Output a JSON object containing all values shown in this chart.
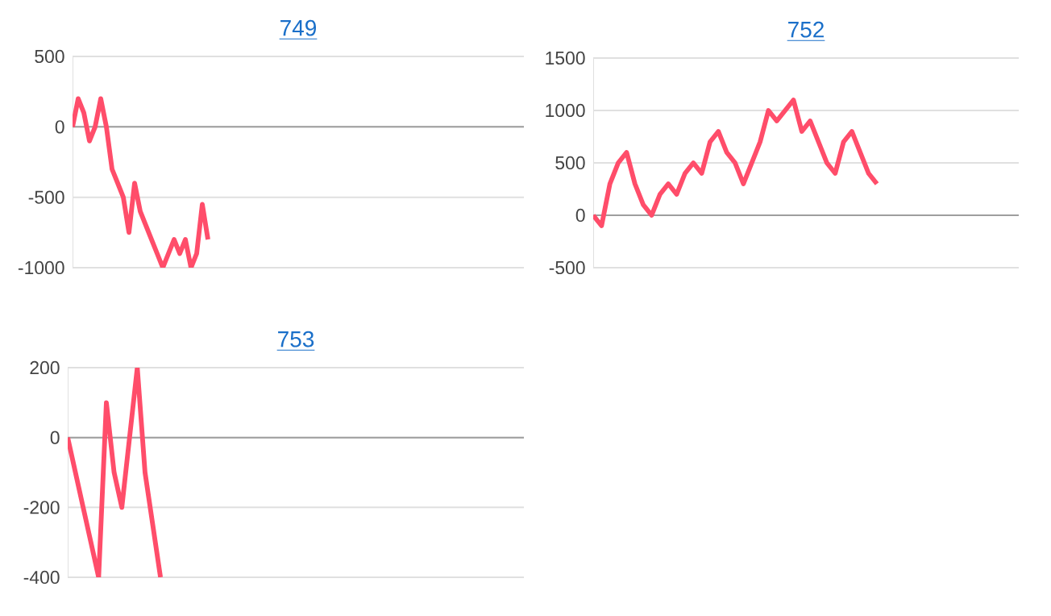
{
  "chart_data": [
    {
      "type": "line",
      "title": "749",
      "tick_labels": "y",
      "grid": "y",
      "ylim": [
        -1000,
        500
      ],
      "yticks": [
        -1000,
        -500,
        0,
        500
      ],
      "categories": [
        null,
        null,
        null,
        null,
        null,
        null,
        null,
        null,
        null,
        null,
        null,
        null,
        null,
        null,
        null,
        null,
        null,
        null,
        null,
        null,
        null,
        null,
        null,
        null,
        null,
        null,
        null,
        null,
        null,
        null,
        null,
        null,
        null,
        null,
        null,
        null,
        null,
        null,
        null,
        null,
        null,
        null,
        null,
        null,
        null,
        null,
        null,
        null,
        null,
        null,
        null,
        null,
        null,
        null,
        null,
        null,
        null,
        null,
        null,
        null,
        null,
        null,
        null,
        null,
        null,
        null,
        null,
        null,
        null,
        null,
        null,
        null,
        null,
        null,
        null,
        null,
        null,
        null,
        null,
        null,
        null
      ],
      "series": [
        {
          "color": "#ff4d6a",
          "values": [
            0,
            200,
            100,
            -100,
            0,
            200,
            0,
            -300,
            -400,
            -500,
            -750,
            -400,
            -600,
            -700,
            -800,
            -900,
            -1000,
            -900,
            -800,
            -900,
            -800,
            -1000,
            -900,
            -550,
            -800,
            null,
            null,
            null,
            null,
            null,
            null,
            null,
            null,
            null,
            null,
            null,
            null,
            null,
            null,
            null,
            null,
            null,
            null,
            null,
            null,
            null,
            null,
            null,
            null,
            null,
            null,
            null,
            null,
            null,
            null,
            null,
            null,
            null,
            null,
            null,
            null,
            null,
            null,
            null,
            null,
            null,
            null,
            null,
            null,
            null,
            null,
            null,
            null,
            null,
            null,
            null,
            null,
            null,
            null,
            null,
            null
          ]
        }
      ]
    },
    {
      "type": "line",
      "title": "752",
      "tick_labels": "y",
      "grid": "y",
      "ylim": [
        -500,
        1500
      ],
      "yticks": [
        -500,
        0,
        500,
        1000,
        1500
      ],
      "categories": [
        null,
        null,
        null,
        null,
        null,
        null,
        null,
        null,
        null,
        null,
        null,
        null,
        null,
        null,
        null,
        null,
        null,
        null,
        null,
        null,
        null,
        null,
        null,
        null,
        null,
        null,
        null,
        null,
        null,
        null,
        null,
        null,
        null,
        null,
        null,
        null,
        null,
        null,
        null,
        null,
        null,
        null,
        null,
        null,
        null,
        null,
        null,
        null,
        null,
        null,
        null,
        null
      ],
      "series": [
        {
          "color": "#ff4d6a",
          "values": [
            0,
            -100,
            300,
            500,
            600,
            300,
            100,
            0,
            200,
            300,
            200,
            400,
            500,
            400,
            700,
            800,
            600,
            500,
            300,
            500,
            700,
            1000,
            900,
            1000,
            1100,
            800,
            900,
            700,
            500,
            400,
            700,
            800,
            600,
            400,
            300,
            null,
            null,
            null,
            null,
            null,
            null,
            null,
            null,
            null,
            null,
            null,
            null,
            null,
            null,
            null,
            null,
            null
          ]
        }
      ]
    },
    {
      "type": "line",
      "title": "753",
      "tick_labels": "y",
      "grid": "y",
      "ylim": [
        -400,
        200
      ],
      "yticks": [
        -400,
        -200,
        0,
        200
      ],
      "categories": [
        null,
        null,
        null,
        null,
        null,
        null,
        null,
        null,
        null,
        null,
        null,
        null,
        null,
        null,
        null,
        null,
        null,
        null,
        null,
        null,
        null,
        null,
        null,
        null,
        null,
        null,
        null,
        null,
        null,
        null,
        null,
        null,
        null,
        null,
        null,
        null,
        null,
        null,
        null,
        null,
        null,
        null,
        null,
        null,
        null,
        null,
        null,
        null,
        null,
        null,
        null,
        null,
        null,
        null,
        null,
        null,
        null,
        null,
        null,
        null
      ],
      "series": [
        {
          "color": "#ff4d6a",
          "values": [
            0,
            -100,
            -200,
            -300,
            -400,
            100,
            -100,
            -200,
            0,
            200,
            -100,
            -250,
            -400,
            null,
            null,
            null,
            null,
            null,
            null,
            null,
            null,
            null,
            null,
            null,
            null,
            null,
            null,
            null,
            null,
            null,
            null,
            null,
            null,
            null,
            null,
            null,
            null,
            null,
            null,
            null,
            null,
            null,
            null,
            null,
            null,
            null,
            null,
            null,
            null,
            null,
            null,
            null,
            null,
            null,
            null,
            null,
            null,
            null,
            null,
            null
          ]
        }
      ]
    }
  ]
}
